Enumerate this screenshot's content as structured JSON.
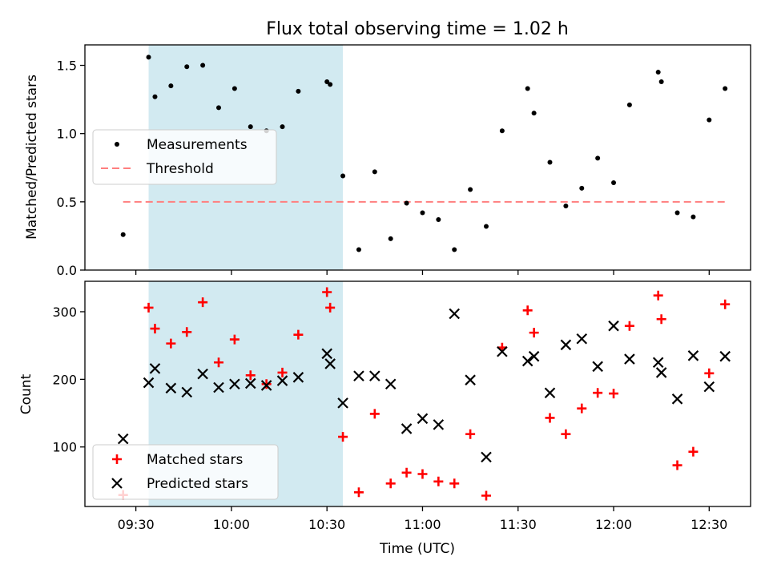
{
  "chart_data": [
    {
      "type": "scatter",
      "title": "Flux total observing time = 1.02 h",
      "xlabel": "",
      "ylabel": "Matched/Predicted stars",
      "ylim": [
        0,
        1.65
      ],
      "yticks": [
        0.0,
        0.5,
        1.0,
        1.5
      ],
      "ytick_labels": [
        "0.0",
        "0.5",
        "1.0",
        "1.5"
      ],
      "x_range": [
        "09:14",
        "12:43"
      ],
      "xticks": [
        "09:30",
        "10:00",
        "10:30",
        "11:00",
        "11:30",
        "12:00",
        "12:30"
      ],
      "xtick_labels": [],
      "highlight_interval": [
        "09:34",
        "10:35"
      ],
      "highlight_color": "#add8e6",
      "legend": {
        "placement": "center-left",
        "entries": [
          {
            "label": "Measurements",
            "marker": "dot",
            "color": "#000000"
          },
          {
            "label": "Threshold",
            "marker": "dashed-line",
            "color": "#ff7f7f"
          }
        ]
      },
      "threshold": {
        "value": 0.5,
        "x": [
          "09:26",
          "12:36"
        ],
        "color": "#ff7f7f"
      },
      "series": [
        {
          "name": "Measurements",
          "color": "#000000",
          "points": [
            [
              "09:26",
              0.26
            ],
            [
              "09:34",
              1.56
            ],
            [
              "09:36",
              1.27
            ],
            [
              "09:41",
              1.35
            ],
            [
              "09:46",
              1.49
            ],
            [
              "09:51",
              1.5
            ],
            [
              "09:56",
              1.19
            ],
            [
              "10:01",
              1.33
            ],
            [
              "10:06",
              1.05
            ],
            [
              "10:11",
              1.02
            ],
            [
              "10:16",
              1.05
            ],
            [
              "10:21",
              1.31
            ],
            [
              "10:30",
              1.38
            ],
            [
              "10:31",
              1.36
            ],
            [
              "10:35",
              0.69
            ],
            [
              "10:40",
              0.15
            ],
            [
              "10:45",
              0.72
            ],
            [
              "10:50",
              0.23
            ],
            [
              "10:55",
              0.49
            ],
            [
              "11:00",
              0.42
            ],
            [
              "11:05",
              0.37
            ],
            [
              "11:10",
              0.15
            ],
            [
              "11:15",
              0.59
            ],
            [
              "11:20",
              0.32
            ],
            [
              "11:25",
              1.02
            ],
            [
              "11:33",
              1.33
            ],
            [
              "11:35",
              1.15
            ],
            [
              "11:40",
              0.79
            ],
            [
              "11:45",
              0.47
            ],
            [
              "11:50",
              0.6
            ],
            [
              "11:55",
              0.82
            ],
            [
              "12:00",
              0.64
            ],
            [
              "12:05",
              1.21
            ],
            [
              "12:14",
              1.45
            ],
            [
              "12:15",
              1.38
            ],
            [
              "12:20",
              0.42
            ],
            [
              "12:25",
              0.39
            ],
            [
              "12:30",
              1.1
            ],
            [
              "12:35",
              1.33
            ]
          ]
        }
      ]
    },
    {
      "type": "scatter",
      "title": "",
      "xlabel": "Time (UTC)",
      "ylabel": "Count",
      "ylim": [
        12,
        345
      ],
      "yticks": [
        100,
        200,
        300
      ],
      "ytick_labels": [
        "100",
        "200",
        "300"
      ],
      "x_range": [
        "09:14",
        "12:43"
      ],
      "xticks": [
        "09:30",
        "10:00",
        "10:30",
        "11:00",
        "11:30",
        "12:00",
        "12:30"
      ],
      "xtick_labels": [
        "09:30",
        "10:00",
        "10:30",
        "11:00",
        "11:30",
        "12:00",
        "12:30"
      ],
      "highlight_interval": [
        "09:34",
        "10:35"
      ],
      "highlight_color": "#add8e6",
      "legend": {
        "placement": "lower-left",
        "entries": [
          {
            "label": "Matched stars",
            "marker": "plus",
            "color": "#ff0000"
          },
          {
            "label": "Predicted stars",
            "marker": "x",
            "color": "#000000"
          }
        ]
      },
      "series": [
        {
          "name": "Matched stars",
          "marker": "plus",
          "color": "#ff0000",
          "points": [
            [
              "09:26",
              29
            ],
            [
              "09:34",
              306
            ],
            [
              "09:36",
              275
            ],
            [
              "09:41",
              253
            ],
            [
              "09:46",
              270
            ],
            [
              "09:51",
              314
            ],
            [
              "09:56",
              225
            ],
            [
              "10:01",
              259
            ],
            [
              "10:06",
              206
            ],
            [
              "10:11",
              193
            ],
            [
              "10:16",
              210
            ],
            [
              "10:21",
              266
            ],
            [
              "10:30",
              329
            ],
            [
              "10:31",
              306
            ],
            [
              "10:35",
              115
            ],
            [
              "10:40",
              33
            ],
            [
              "10:45",
              149
            ],
            [
              "10:50",
              46
            ],
            [
              "10:55",
              62
            ],
            [
              "11:00",
              60
            ],
            [
              "11:05",
              49
            ],
            [
              "11:10",
              46
            ],
            [
              "11:15",
              119
            ],
            [
              "11:20",
              28
            ],
            [
              "11:25",
              247
            ],
            [
              "11:33",
              302
            ],
            [
              "11:35",
              269
            ],
            [
              "11:40",
              143
            ],
            [
              "11:45",
              119
            ],
            [
              "11:50",
              157
            ],
            [
              "11:55",
              180
            ],
            [
              "12:00",
              179
            ],
            [
              "12:05",
              279
            ],
            [
              "12:14",
              324
            ],
            [
              "12:15",
              289
            ],
            [
              "12:20",
              73
            ],
            [
              "12:25",
              93
            ],
            [
              "12:30",
              209
            ],
            [
              "12:35",
              311
            ]
          ]
        },
        {
          "name": "Predicted stars",
          "marker": "x",
          "color": "#000000",
          "points": [
            [
              "09:26",
              112
            ],
            [
              "09:34",
              195
            ],
            [
              "09:36",
              216
            ],
            [
              "09:41",
              187
            ],
            [
              "09:46",
              181
            ],
            [
              "09:51",
              208
            ],
            [
              "09:56",
              188
            ],
            [
              "10:01",
              193
            ],
            [
              "10:06",
              194
            ],
            [
              "10:11",
              191
            ],
            [
              "10:16",
              198
            ],
            [
              "10:21",
              203
            ],
            [
              "10:30",
              238
            ],
            [
              "10:31",
              223
            ],
            [
              "10:35",
              165
            ],
            [
              "10:40",
              205
            ],
            [
              "10:45",
              205
            ],
            [
              "10:50",
              193
            ],
            [
              "10:55",
              127
            ],
            [
              "11:00",
              142
            ],
            [
              "11:05",
              133
            ],
            [
              "11:10",
              297
            ],
            [
              "11:15",
              199
            ],
            [
              "11:20",
              85
            ],
            [
              "11:25",
              241
            ],
            [
              "11:33",
              227
            ],
            [
              "11:35",
              234
            ],
            [
              "11:40",
              180
            ],
            [
              "11:45",
              251
            ],
            [
              "11:50",
              260
            ],
            [
              "11:55",
              219
            ],
            [
              "12:00",
              279
            ],
            [
              "12:05",
              230
            ],
            [
              "12:14",
              225
            ],
            [
              "12:15",
              210
            ],
            [
              "12:20",
              171
            ],
            [
              "12:25",
              235
            ],
            [
              "12:30",
              189
            ],
            [
              "12:35",
              234
            ]
          ]
        }
      ]
    }
  ]
}
